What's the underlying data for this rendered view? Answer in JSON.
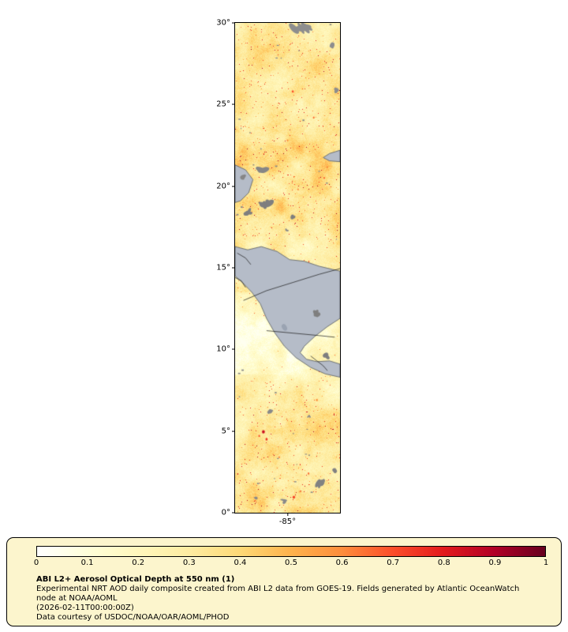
{
  "map": {
    "y_axis_ticks": [
      "30°",
      "25°",
      "20°",
      "15°",
      "10°",
      "5°",
      "0°"
    ],
    "x_axis_tick": "-85°",
    "lat_min": 0,
    "lat_max": 30,
    "palette": {
      "land": "#b5bcc8",
      "land_outline": "#565a62",
      "country_border": "#1a1a1a",
      "cloud_nodata": "#858585",
      "lake": "#9aa3b2"
    }
  },
  "colorbar": {
    "tick_labels": [
      "0",
      "0.1",
      "0.2",
      "0.3",
      "0.4",
      "0.5",
      "0.6",
      "0.7",
      "0.8",
      "0.9",
      "1"
    ],
    "min": 0,
    "max": 1,
    "stops": [
      "#ffffff",
      "#ffffd9",
      "#fff7bc",
      "#feeca1",
      "#fed976",
      "#feb24c",
      "#fd8d3c",
      "#fc4e2a",
      "#e31a1c",
      "#b10026",
      "#67001f"
    ]
  },
  "legend": {
    "title": "ABI L2+ Aerosol Optical Depth at 550 nm (1)",
    "description": "Experimental NRT AOD daily composite created from ABI L2 data from GOES-19. Fields generated by Atlantic OceanWatch node at NOAA/AOML",
    "timestamp": "(2026-02-11T00:00:00Z)",
    "credit": "Data courtesy of USDOC/NOAA/OAR/AOML/PHOD",
    "background": "#fcf5cd"
  },
  "chart_data": {
    "type": "heatmap",
    "title": "ABI L2+ Aerosol Optical Depth at 550 nm (1)",
    "variable": "aerosol optical depth at 550 nm",
    "value_range": [
      0,
      1
    ],
    "colorbar_ticks": [
      0,
      0.1,
      0.2,
      0.3,
      0.4,
      0.5,
      0.6,
      0.7,
      0.8,
      0.9,
      1
    ],
    "y_axis_ticks_deg_lat": [
      30,
      25,
      20,
      15,
      10,
      5,
      0
    ],
    "x_axis_tick_deg_lon": -85,
    "legend_position": "bottom"
  }
}
